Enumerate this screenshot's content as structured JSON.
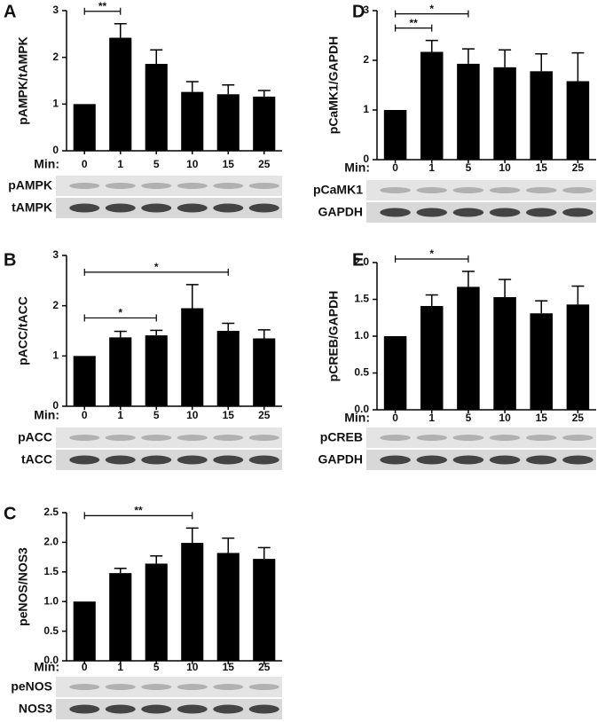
{
  "chart_data": [
    {
      "type": "bar",
      "panel": "A",
      "ylabel": "pAMPK/tAMPK",
      "x_prefix": "Min:",
      "categories": [
        "0",
        "1",
        "5",
        "10",
        "15",
        "25"
      ],
      "values": [
        1,
        2.42,
        1.86,
        1.26,
        1.21,
        1.16
      ],
      "errors": [
        0,
        0.3,
        0.3,
        0.22,
        0.2,
        0.13
      ],
      "color": "#000000",
      "ylim": [
        0,
        3
      ],
      "yticks": [
        0,
        1,
        2,
        3
      ],
      "annotations": [
        {
          "text": "**",
          "start": "0",
          "end": "1"
        }
      ],
      "blots": [
        "pAMPK",
        "tAMPK"
      ]
    },
    {
      "type": "bar",
      "panel": "D",
      "ylabel": "pCaMK1/GAPDH",
      "x_prefix": "Min:",
      "categories": [
        "0",
        "1",
        "5",
        "10",
        "15",
        "25"
      ],
      "values": [
        1,
        2.17,
        1.93,
        1.86,
        1.78,
        1.58
      ],
      "errors": [
        0,
        0.23,
        0.3,
        0.35,
        0.35,
        0.57
      ],
      "color": "#000000",
      "ylim": [
        0,
        3
      ],
      "yticks": [
        0,
        1,
        2,
        3
      ],
      "annotations": [
        {
          "text": "**",
          "start": "0",
          "end": "1"
        },
        {
          "text": "*",
          "start": "0",
          "end": "5"
        }
      ],
      "blots": [
        "pCaMK1",
        "GAPDH"
      ]
    },
    {
      "type": "bar",
      "panel": "B",
      "ylabel": "pACC/tACC",
      "x_prefix": "Min:",
      "categories": [
        "0",
        "1",
        "5",
        "10",
        "15",
        "25"
      ],
      "values": [
        1,
        1.37,
        1.41,
        1.95,
        1.5,
        1.35
      ],
      "errors": [
        0,
        0.12,
        0.1,
        0.47,
        0.15,
        0.17
      ],
      "color": "#000000",
      "ylim": [
        0,
        3
      ],
      "yticks": [
        0,
        1,
        2,
        3
      ],
      "annotations": [
        {
          "text": "*",
          "start": "0",
          "end": "5"
        },
        {
          "text": "*",
          "start": "0",
          "end": "15"
        }
      ],
      "blots": [
        "pACC",
        "tACC"
      ]
    },
    {
      "type": "bar",
      "panel": "E",
      "ylabel": "pCREB/GAPDH",
      "x_prefix": "Min:",
      "categories": [
        "0",
        "1",
        "5",
        "10",
        "15",
        "25"
      ],
      "values": [
        1,
        1.41,
        1.67,
        1.53,
        1.31,
        1.43
      ],
      "errors": [
        0,
        0.15,
        0.21,
        0.24,
        0.17,
        0.25
      ],
      "color": "#000000",
      "ylim": [
        0,
        2
      ],
      "yticks": [
        {
          "value": 0,
          "label": "0.0"
        },
        0.5,
        {
          "value": 1,
          "label": "1.0"
        },
        1.5,
        {
          "value": 2,
          "label": "2.0"
        }
      ],
      "annotations": [
        {
          "text": "*",
          "start": "0",
          "end": "5"
        }
      ],
      "blots": [
        "pCREB",
        "GAPDH"
      ]
    },
    {
      "type": "bar",
      "panel": "C",
      "ylabel": "peNOS/NOS3",
      "x_prefix": "Min:",
      "categories": [
        "0",
        "1",
        "5",
        "10",
        "15",
        "25"
      ],
      "values": [
        1,
        1.48,
        1.64,
        1.99,
        1.82,
        1.72
      ],
      "errors": [
        0,
        0.08,
        0.13,
        0.25,
        0.25,
        0.19
      ],
      "color": "#000000",
      "ylim": [
        0,
        2.5
      ],
      "yticks": [
        {
          "value": 0,
          "label": "0.0"
        },
        0.5,
        {
          "value": 1,
          "label": "1.0"
        },
        1.5,
        {
          "value": 2,
          "label": "2.0"
        },
        2.5
      ],
      "annotations": [
        {
          "text": "**",
          "start": "0",
          "end": "10"
        }
      ],
      "blots": [
        "peNOS",
        "NOS3"
      ]
    }
  ]
}
